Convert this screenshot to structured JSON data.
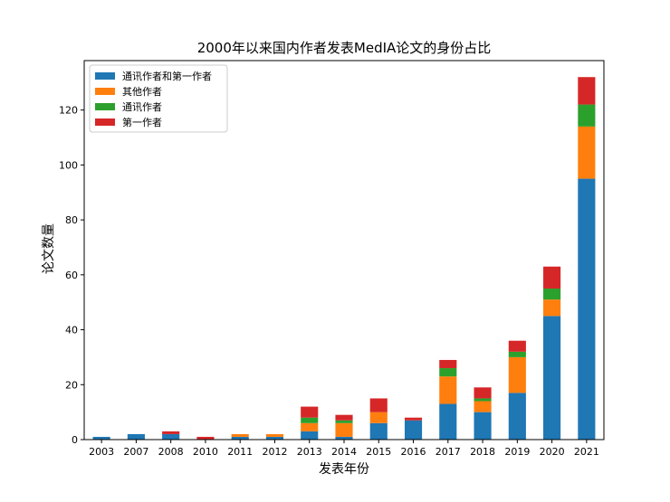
{
  "chart_data": {
    "type": "bar",
    "stacked": true,
    "title": "2000年以来国内作者发表MedIA论文的身份占比",
    "xlabel": "发表年份",
    "ylabel": "论文数量",
    "categories": [
      "2003",
      "2007",
      "2008",
      "2010",
      "2011",
      "2012",
      "2013",
      "2014",
      "2015",
      "2016",
      "2017",
      "2018",
      "2019",
      "2020",
      "2021"
    ],
    "ylim": [
      0,
      138
    ],
    "yticks": [
      0,
      20,
      40,
      60,
      80,
      100,
      120
    ],
    "grid": false,
    "legend_position": "top-left",
    "series": [
      {
        "name": "通讯作者和第一作者",
        "color": "#1f77b4",
        "values": [
          1,
          2,
          2,
          0,
          1,
          1,
          3,
          1,
          6,
          7,
          13,
          10,
          17,
          45,
          95
        ]
      },
      {
        "name": "其他作者",
        "color": "#ff7f0e",
        "values": [
          0,
          0,
          0,
          0,
          1,
          1,
          3,
          5,
          4,
          0,
          10,
          4,
          13,
          6,
          19
        ]
      },
      {
        "name": "通讯作者",
        "color": "#2ca02c",
        "values": [
          0,
          0,
          0,
          0,
          0,
          0,
          2,
          1,
          0,
          0,
          3,
          1,
          2,
          4,
          8
        ]
      },
      {
        "name": "第一作者",
        "color": "#d62728",
        "values": [
          0,
          0,
          1,
          1,
          0,
          0,
          4,
          2,
          5,
          1,
          3,
          4,
          4,
          8,
          10
        ]
      }
    ]
  }
}
